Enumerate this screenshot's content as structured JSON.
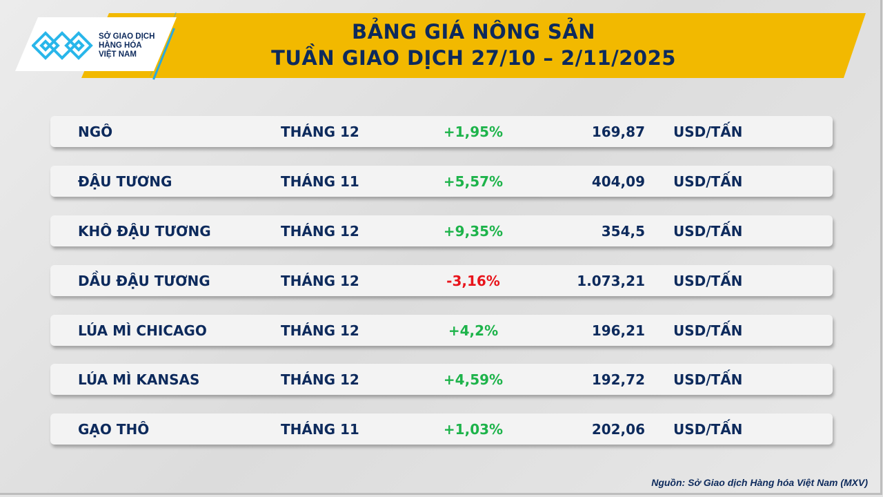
{
  "header": {
    "title_line1": "BẢNG GIÁ NÔNG SẢN",
    "title_line2": "TUẦN GIAO DỊCH 27/10 – 2/11/2025",
    "brand_color": "#f2b900"
  },
  "logo": {
    "line1": "SỞ GIAO DỊCH",
    "line2": "HÀNG HÓA",
    "line3": "VIỆT NAM",
    "icon": "mxv-logo-icon"
  },
  "colors": {
    "text": "#0d2a5c",
    "up": "#1db34a",
    "down": "#e8141b"
  },
  "rows": [
    {
      "name": "NGÔ",
      "month": "THÁNG 12",
      "change": "+1,95%",
      "direction": "up",
      "price": "169,87",
      "unit": "USD/TẤN"
    },
    {
      "name": "ĐẬU TƯƠNG",
      "month": "THÁNG 11",
      "change": "+5,57%",
      "direction": "up",
      "price": "404,09",
      "unit": "USD/TẤN"
    },
    {
      "name": "KHÔ ĐẬU TƯƠNG",
      "month": "THÁNG 12",
      "change": "+9,35%",
      "direction": "up",
      "price": "354,5",
      "unit": "USD/TẤN"
    },
    {
      "name": "DẦU ĐẬU TƯƠNG",
      "month": "THÁNG 12",
      "change": "-3,16%",
      "direction": "down",
      "price": "1.073,21",
      "unit": "USD/TẤN"
    },
    {
      "name": "LÚA MÌ CHICAGO",
      "month": "THÁNG 12",
      "change": "+4,2%",
      "direction": "up",
      "price": "196,21",
      "unit": "USD/TẤN"
    },
    {
      "name": "LÚA MÌ KANSAS",
      "month": "THÁNG 12",
      "change": "+4,59%",
      "direction": "up",
      "price": "192,72",
      "unit": "USD/TẤN"
    },
    {
      "name": "GẠO THÔ",
      "month": "THÁNG 11",
      "change": "+1,03%",
      "direction": "up",
      "price": "202,06",
      "unit": "USD/TẤN"
    }
  ],
  "footer": {
    "source": "Nguồn: Sở Giao dịch Hàng hóa Việt Nam (MXV)"
  }
}
